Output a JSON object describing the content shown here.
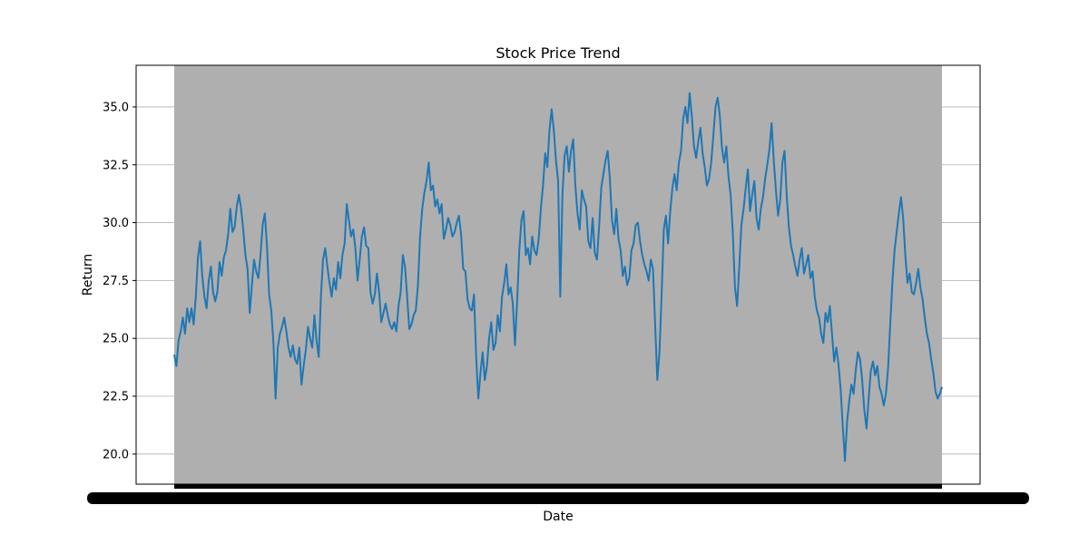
{
  "chart_data": {
    "type": "line",
    "title": "Stock Price Trend",
    "xlabel": "Date",
    "ylabel": "Return",
    "ylim": [
      18.7,
      36.8
    ],
    "yticks": [
      "20.0",
      "22.5",
      "25.0",
      "27.5",
      "30.0",
      "32.5",
      "35.0"
    ],
    "grid": "horizontal",
    "plot_background": "#afafaf",
    "line_color": "#1f77b4",
    "x_index_range": [
      0,
      1000
    ],
    "series": [
      {
        "values": [
          24.3,
          23.8,
          24.9,
          25.3,
          25.9,
          25.2,
          26.3,
          25.7,
          26.3,
          25.6,
          26.8,
          28.5,
          29.2,
          27.7,
          26.8,
          26.3,
          27.5,
          28.1,
          27.0,
          26.6,
          27.0,
          28.3,
          27.7,
          28.5,
          28.8,
          29.5,
          30.6,
          29.6,
          29.8,
          30.7,
          31.2,
          30.6,
          29.7,
          28.6,
          28.0,
          26.1,
          27.3,
          28.4,
          27.9,
          27.6,
          28.6,
          29.9,
          30.4,
          29.0,
          26.9,
          26.2,
          24.8,
          22.4,
          24.6,
          25.2,
          25.5,
          25.9,
          25.3,
          24.6,
          24.2,
          24.7,
          24.1,
          23.9,
          24.6,
          23.0,
          23.8,
          24.5,
          25.5,
          25.0,
          24.6,
          26.0,
          24.9,
          24.2,
          26.8,
          28.4,
          28.9,
          28.1,
          27.4,
          26.8,
          27.6,
          27.1,
          28.3,
          27.6,
          28.6,
          29.1,
          30.8,
          30.1,
          29.4,
          29.7,
          28.9,
          27.5,
          28.4,
          29.4,
          29.8,
          29.0,
          28.9,
          27.0,
          26.5,
          26.9,
          27.8,
          27.0,
          25.7,
          26.1,
          26.5,
          26.0,
          25.6,
          25.4,
          25.7,
          25.3,
          26.4,
          27.0,
          28.6,
          28.1,
          26.8,
          25.4,
          25.6,
          26.0,
          26.2,
          27.3,
          29.4,
          30.6,
          31.3,
          31.8,
          32.6,
          31.4,
          31.6,
          30.7,
          31.0,
          30.4,
          30.8,
          29.3,
          29.7,
          30.2,
          29.9,
          29.4,
          29.6,
          30.0,
          30.3,
          29.5,
          28.0,
          27.9,
          26.7,
          26.3,
          26.2,
          26.9,
          24.2,
          22.4,
          23.5,
          24.4,
          23.2,
          23.8,
          25.0,
          25.7,
          24.5,
          24.8,
          26.0,
          25.3,
          26.8,
          27.4,
          28.2,
          26.9,
          27.2,
          26.5,
          24.7,
          26.6,
          28.8,
          30.1,
          30.5,
          28.6,
          28.9,
          28.2,
          29.4,
          28.8,
          28.6,
          29.3,
          30.6,
          31.6,
          33.0,
          32.4,
          34.0,
          34.9,
          34.0,
          32.7,
          31.8,
          26.8,
          31.2,
          32.9,
          33.3,
          32.2,
          33.1,
          33.6,
          31.6,
          30.4,
          29.7,
          31.4,
          31.0,
          30.7,
          29.2,
          28.9,
          30.2,
          28.7,
          28.4,
          29.8,
          31.5,
          32.1,
          32.7,
          33.1,
          31.9,
          30.1,
          29.5,
          30.6,
          29.3,
          28.8,
          27.7,
          28.1,
          27.3,
          27.6,
          28.8,
          29.1,
          29.9,
          30.0,
          29.2,
          28.6,
          28.2,
          27.9,
          27.5,
          28.4,
          28.0,
          25.6,
          23.2,
          24.4,
          26.9,
          29.7,
          30.3,
          29.1,
          30.5,
          31.5,
          32.1,
          31.4,
          32.6,
          33.1,
          34.5,
          35.0,
          34.3,
          35.6,
          34.6,
          33.3,
          32.8,
          33.5,
          34.1,
          33.0,
          32.4,
          31.6,
          31.9,
          32.6,
          33.8,
          35.0,
          35.4,
          34.6,
          33.2,
          32.6,
          33.3,
          32.0,
          31.2,
          29.6,
          27.2,
          26.4,
          28.1,
          29.9,
          30.6,
          31.5,
          32.3,
          30.5,
          31.2,
          31.8,
          30.2,
          29.7,
          30.6,
          31.1,
          31.9,
          32.5,
          33.2,
          34.3,
          32.7,
          31.4,
          30.3,
          31.0,
          32.6,
          33.1,
          31.2,
          29.8,
          29.0,
          28.6,
          28.1,
          27.7,
          28.4,
          28.9,
          27.8,
          28.2,
          28.6,
          27.6,
          27.9,
          26.8,
          26.2,
          25.9,
          25.2,
          24.8,
          26.1,
          25.7,
          26.4,
          25.2,
          24.0,
          24.6,
          23.9,
          22.8,
          21.2,
          19.7,
          21.4,
          22.3,
          23.0,
          22.6,
          23.6,
          24.4,
          24.1,
          23.2,
          21.9,
          21.1,
          22.4,
          23.6,
          24.0,
          23.4,
          23.8,
          22.9,
          22.6,
          22.1,
          22.6,
          23.7,
          25.6,
          27.4,
          28.8,
          29.6,
          30.4,
          31.1,
          30.2,
          28.6,
          27.4,
          27.8,
          27.0,
          26.9,
          27.4,
          28.0,
          27.2,
          26.7,
          25.9,
          25.2,
          24.8,
          24.1,
          23.5,
          22.7,
          22.4,
          22.6,
          22.9
        ]
      }
    ]
  }
}
